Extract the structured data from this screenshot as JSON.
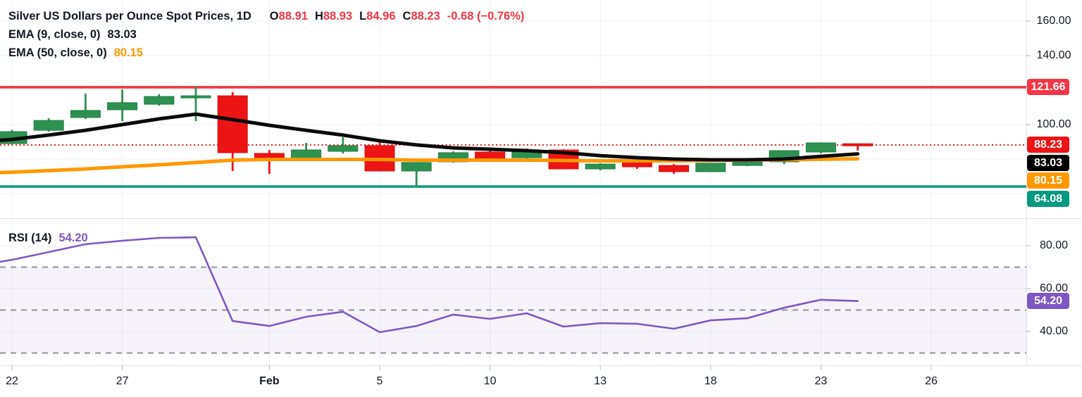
{
  "legend": {
    "title": "Silver US Dollars per Ounce Spot Prices, 1D",
    "o_label": "O",
    "o_value": "88.91",
    "h_label": "H",
    "h_value": "88.93",
    "l_label": "L",
    "l_value": "84.96",
    "c_label": "C",
    "c_value": "88.23",
    "change": "-0.68 (−0.76%)",
    "ema9_label": "EMA (9, close, 0)",
    "ema9_value": "83.03",
    "ema50_label": "EMA (50, close, 0)",
    "ema50_value": "80.15",
    "rsi_label": "RSI (14)",
    "rsi_value": "54.20"
  },
  "colors": {
    "up": "#2e9152",
    "up_border": "#1e7c43",
    "down": "#ec1414",
    "down_border": "#dc1010",
    "ema9": "#0a0a0a",
    "ema50": "#ff9800",
    "rsi": "#7e57c2",
    "resistance": "#f23645",
    "support": "#089981",
    "current": "#ec1414",
    "grid": "#eef1f7",
    "dashed": "#8f929c",
    "axis_text": "#131722",
    "separator": "#dfe2ea",
    "tick": "#b0b3bb",
    "badge_current": "#ec1414",
    "badge_ema9": "#000000",
    "badge_ema50": "#ff9800",
    "badge_support": "#089981",
    "badge_resistance": "#f23645",
    "badge_rsi": "#7e57c2"
  },
  "price_axis": {
    "plain_labels": [
      {
        "text": "160.00",
        "price": 160
      },
      {
        "text": "140.00",
        "price": 140
      },
      {
        "text": "100.00",
        "price": 100
      }
    ],
    "badges": [
      {
        "text": "121.66",
        "price": 121.66,
        "color_key": "badge_resistance"
      },
      {
        "text": "88.23",
        "price": 88.23,
        "color_key": "badge_current"
      },
      {
        "text": "83.03",
        "price": 83.03,
        "color_key": "badge_ema9"
      },
      {
        "text": "80.15",
        "price": 80.15,
        "color_key": "badge_ema50"
      },
      {
        "text": "64.08",
        "price": 64.08,
        "color_key": "badge_support"
      }
    ]
  },
  "rsi_axis": {
    "plain_labels": [
      {
        "text": "80.00",
        "value": 80
      },
      {
        "text": "60.00",
        "value": 60
      },
      {
        "text": "40.00",
        "value": 40
      }
    ],
    "badge": {
      "text": "54.20",
      "value": 54.2,
      "color_key": "badge_rsi"
    }
  },
  "time_axis": {
    "ticks": [
      {
        "i": 0,
        "label": "22",
        "bold": false
      },
      {
        "i": 3,
        "label": "27",
        "bold": false
      },
      {
        "i": 7,
        "label": "Feb",
        "bold": true
      },
      {
        "i": 10,
        "label": "5",
        "bold": false
      },
      {
        "i": 13,
        "label": "10",
        "bold": false
      },
      {
        "i": 16,
        "label": "13",
        "bold": false
      },
      {
        "i": 19,
        "label": "18",
        "bold": false
      },
      {
        "i": 22,
        "label": "23",
        "bold": false
      },
      {
        "i": 25,
        "label": "26",
        "bold": false
      }
    ]
  },
  "chart_data": [
    {
      "type": "candlestick",
      "title": "Silver US Dollars per Ounce Spot Prices, 1D",
      "last_bar": {
        "open": 88.91,
        "high": 88.93,
        "low": 84.96,
        "close": 88.23,
        "change": -0.68,
        "change_pct": -0.76
      },
      "x_tick_labels": [
        "22",
        "27",
        "Feb",
        "5",
        "10",
        "13",
        "18",
        "23",
        "26"
      ],
      "ylim": [
        46,
        172
      ],
      "y_gridlines": [
        160,
        140,
        120,
        100,
        80,
        60
      ],
      "candles": [
        {
          "o": 89.0,
          "h": 96.9,
          "l": 88.2,
          "c": 95.9
        },
        {
          "o": 96.7,
          "h": 103.7,
          "l": 95.9,
          "c": 102.4
        },
        {
          "o": 104.1,
          "h": 118.0,
          "l": 103.3,
          "c": 108.2
        },
        {
          "o": 108.6,
          "h": 120.4,
          "l": 102.0,
          "c": 112.7
        },
        {
          "o": 111.8,
          "h": 117.6,
          "l": 111.0,
          "c": 116.3
        },
        {
          "o": 115.5,
          "h": 122.0,
          "l": 102.0,
          "c": 116.7
        },
        {
          "o": 116.7,
          "h": 118.8,
          "l": 73.1,
          "c": 83.7
        },
        {
          "o": 83.3,
          "h": 85.3,
          "l": 71.4,
          "c": 79.2
        },
        {
          "o": 79.6,
          "h": 89.4,
          "l": 79.2,
          "c": 85.3
        },
        {
          "o": 84.5,
          "h": 92.7,
          "l": 83.3,
          "c": 87.8
        },
        {
          "o": 87.8,
          "h": 89.8,
          "l": 72.9,
          "c": 73.1
        },
        {
          "o": 73.1,
          "h": 78.0,
          "l": 64.08,
          "c": 78.0
        },
        {
          "o": 78.4,
          "h": 84.5,
          "l": 78.0,
          "c": 83.7
        },
        {
          "o": 84.1,
          "h": 85.3,
          "l": 79.6,
          "c": 80.0
        },
        {
          "o": 80.8,
          "h": 86.1,
          "l": 80.4,
          "c": 84.1
        },
        {
          "o": 85.3,
          "h": 85.7,
          "l": 74.1,
          "c": 74.3
        },
        {
          "o": 74.3,
          "h": 77.6,
          "l": 73.5,
          "c": 77.1
        },
        {
          "o": 78.0,
          "h": 79.2,
          "l": 74.3,
          "c": 75.5
        },
        {
          "o": 76.3,
          "h": 77.1,
          "l": 71.4,
          "c": 72.7
        },
        {
          "o": 72.7,
          "h": 77.6,
          "l": 72.5,
          "c": 77.6
        },
        {
          "o": 76.3,
          "h": 79.2,
          "l": 75.9,
          "c": 78.4
        },
        {
          "o": 78.4,
          "h": 84.9,
          "l": 77.1,
          "c": 84.9
        },
        {
          "o": 84.1,
          "h": 89.4,
          "l": 83.3,
          "c": 89.4
        },
        {
          "o": 88.91,
          "h": 88.93,
          "l": 84.96,
          "c": 88.23
        }
      ],
      "overlays": [
        {
          "name": "EMA (9, close, 0)",
          "color_key": "ema9",
          "current": 83.03,
          "edge_value": 90.9,
          "values": [
            91.4,
            93.9,
            96.7,
            100.0,
            103.3,
            106.1,
            102.9,
            99.6,
            96.7,
            93.9,
            90.6,
            88.2,
            86.5,
            85.7,
            84.9,
            83.7,
            82.0,
            80.8,
            80.0,
            79.6,
            79.6,
            80.0,
            81.6,
            83.03
          ]
        },
        {
          "name": "EMA (50, close, 0)",
          "color_key": "ema50",
          "current": 80.15,
          "edge_value": 72.2,
          "values": [
            72.4,
            73.3,
            74.3,
            75.5,
            76.7,
            78.0,
            79.4,
            79.8,
            79.8,
            79.8,
            79.8,
            79.4,
            79.4,
            79.4,
            79.4,
            79.2,
            79.0,
            79.0,
            79.0,
            79.2,
            79.4,
            79.6,
            79.9,
            80.15
          ]
        }
      ],
      "levels": [
        {
          "value": 121.66,
          "style": "solid",
          "color_key": "resistance"
        },
        {
          "value": 88.23,
          "style": "dotted",
          "color_key": "current"
        },
        {
          "value": 64.08,
          "style": "solid",
          "color_key": "support"
        }
      ]
    },
    {
      "type": "line",
      "name": "RSI (14)",
      "color_key": "rsi",
      "current": 54.2,
      "ylim": [
        24,
        93
      ],
      "y_gridlines": [
        80,
        60,
        40
      ],
      "dashed_levels": [
        70,
        50,
        30
      ],
      "band": [
        30,
        70
      ],
      "edge_value": 72.5,
      "values": [
        73.4,
        77.0,
        80.7,
        82.3,
        83.6,
        83.9,
        44.9,
        42.6,
        46.9,
        49.2,
        39.7,
        42.6,
        47.9,
        45.9,
        48.5,
        42.3,
        43.9,
        43.6,
        41.3,
        45.2,
        46.2,
        51.1,
        54.8,
        54.2
      ]
    }
  ]
}
